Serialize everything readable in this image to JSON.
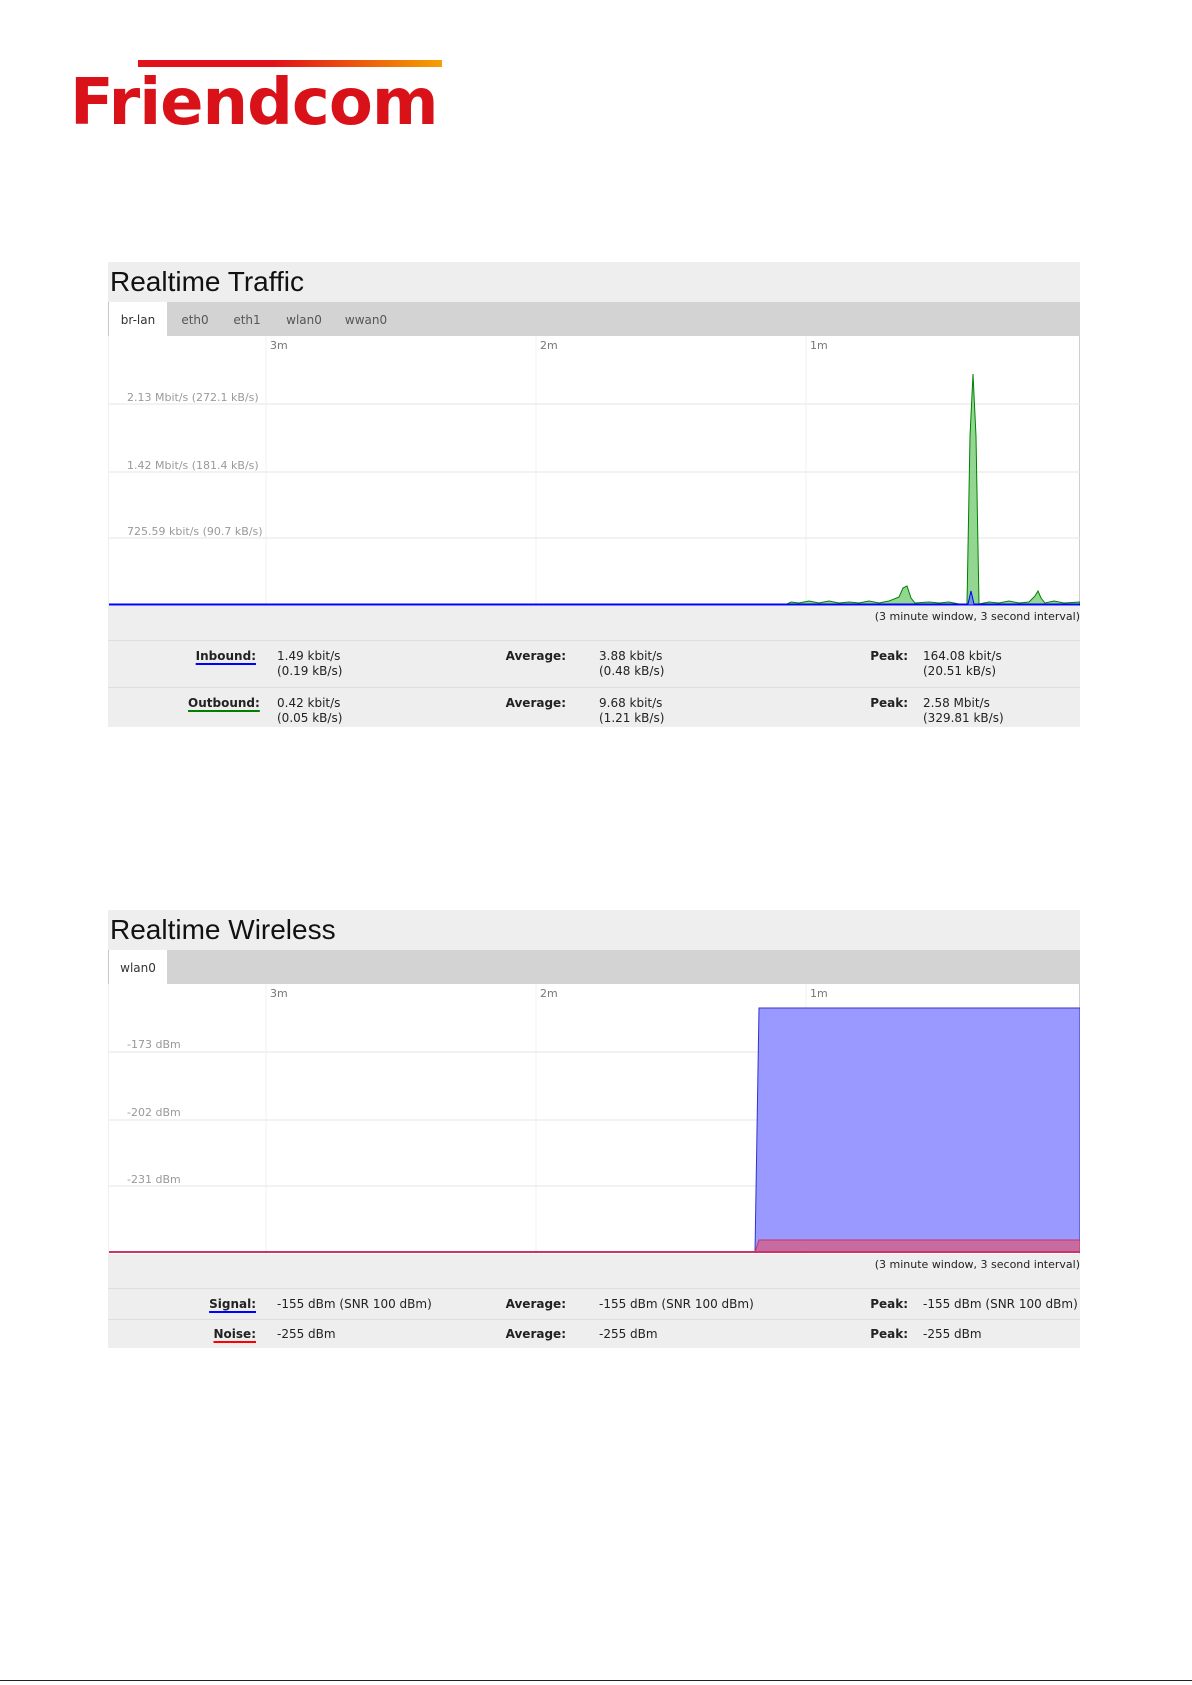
{
  "logo": {
    "text": "Friendcom"
  },
  "traffic": {
    "title": "Realtime Traffic",
    "tabs": [
      "br-lan",
      "eth0",
      "eth1",
      "wlan0",
      "wwan0"
    ],
    "active_tab": "br-lan",
    "time_ticks": [
      "3m",
      "2m",
      "1m"
    ],
    "y_ticks": [
      "2.13 Mbit/s (272.1 kB/s)",
      "1.42 Mbit/s (181.4 kB/s)",
      "725.59 kbit/s (90.7 kB/s)"
    ],
    "window_note": "(3 minute window, 3 second interval)",
    "inbound": {
      "label": "Inbound:",
      "current_line1": "1.49 kbit/s",
      "current_line2": "(0.19 kB/s)",
      "avg_label": "Average:",
      "avg_line1": "3.88 kbit/s",
      "avg_line2": "(0.48 kB/s)",
      "peak_label": "Peak:",
      "peak_line1": "164.08 kbit/s",
      "peak_line2": "(20.51 kB/s)"
    },
    "outbound": {
      "label": "Outbound:",
      "current_line1": "0.42 kbit/s",
      "current_line2": "(0.05 kB/s)",
      "avg_label": "Average:",
      "avg_line1": "9.68 kbit/s",
      "avg_line2": "(1.21 kB/s)",
      "peak_label": "Peak:",
      "peak_line1": "2.58 Mbit/s",
      "peak_line2": "(329.81 kB/s)"
    },
    "colors": {
      "inbound": "#0000ff",
      "outbound": "#008000"
    }
  },
  "wireless": {
    "title": "Realtime Wireless",
    "tabs": [
      "wlan0"
    ],
    "active_tab": "wlan0",
    "time_ticks": [
      "3m",
      "2m",
      "1m"
    ],
    "y_ticks": [
      "-173 dBm",
      "-202 dBm",
      "-231 dBm"
    ],
    "window_note": "(3 minute window, 3 second interval)",
    "signal": {
      "label": "Signal:",
      "current": "-155 dBm (SNR 100 dBm)",
      "avg_label": "Average:",
      "avg": "-155 dBm (SNR 100 dBm)",
      "peak_label": "Peak:",
      "peak": "-155 dBm (SNR 100 dBm)"
    },
    "noise": {
      "label": "Noise:",
      "current": "-255 dBm",
      "avg_label": "Average:",
      "avg": "-255 dBm",
      "peak_label": "Peak:",
      "peak": "-255 dBm"
    },
    "colors": {
      "signal": "#0000ff",
      "noise": "#ff0000"
    }
  }
}
